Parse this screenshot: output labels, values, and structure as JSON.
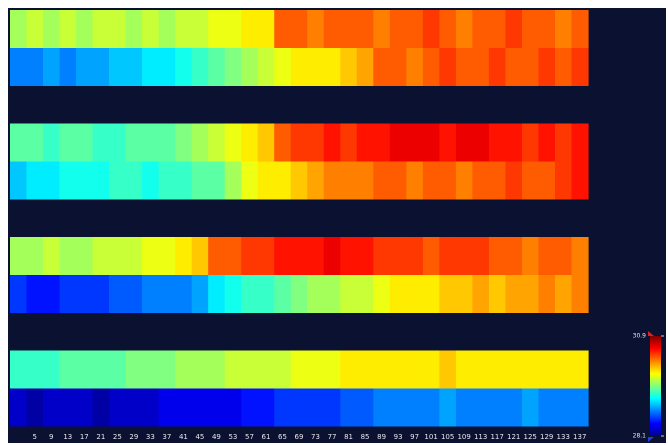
{
  "chart_data": {
    "type": "heatmap",
    "categories": [
      null,
      5,
      9,
      13,
      17,
      21,
      25,
      29,
      33,
      37,
      41,
      45,
      49,
      53,
      57,
      61,
      65,
      69,
      73,
      77,
      81,
      85,
      89,
      93,
      97,
      101,
      105,
      109,
      113,
      117,
      121,
      125,
      129,
      133,
      137
    ],
    "values": [
      [
        29.6,
        29.7,
        29.6,
        29.7,
        29.6,
        29.7,
        29.7,
        29.6,
        29.7,
        29.6,
        29.7,
        29.7,
        29.8,
        29.8,
        29.9,
        29.9,
        30.3,
        30.3,
        30.2,
        30.3,
        30.3,
        30.3,
        30.2,
        30.3,
        30.3,
        30.4,
        30.3,
        30.2,
        30.3,
        30.3,
        30.4,
        30.3,
        30.3,
        30.2,
        30.3
      ],
      [
        28.8,
        28.8,
        28.9,
        28.8,
        28.9,
        28.9,
        29.0,
        29.0,
        29.1,
        29.1,
        29.2,
        29.3,
        29.4,
        29.5,
        29.6,
        29.7,
        29.8,
        29.9,
        29.9,
        29.9,
        30.0,
        30.1,
        30.3,
        30.3,
        30.2,
        30.3,
        30.4,
        30.3,
        30.3,
        30.4,
        30.3,
        30.3,
        30.4,
        30.3,
        30.4
      ],
      [
        29.4,
        29.4,
        29.3,
        29.4,
        29.4,
        29.3,
        29.3,
        29.4,
        29.4,
        29.4,
        29.5,
        29.6,
        29.7,
        29.8,
        29.9,
        30.0,
        30.3,
        30.4,
        30.4,
        30.5,
        30.4,
        30.5,
        30.5,
        30.6,
        30.6,
        30.6,
        30.5,
        30.6,
        30.6,
        30.5,
        30.5,
        30.4,
        30.5,
        30.4,
        30.5
      ],
      [
        29.0,
        29.1,
        29.1,
        29.2,
        29.2,
        29.2,
        29.3,
        29.3,
        29.2,
        29.3,
        29.3,
        29.4,
        29.4,
        29.6,
        29.8,
        29.9,
        29.9,
        30.0,
        30.1,
        30.2,
        30.2,
        30.2,
        30.3,
        30.3,
        30.2,
        30.3,
        30.3,
        30.2,
        30.3,
        30.3,
        30.4,
        30.3,
        30.3,
        30.4,
        30.5
      ],
      [
        29.6,
        29.6,
        29.7,
        29.6,
        29.6,
        29.7,
        29.7,
        29.7,
        29.8,
        29.8,
        29.9,
        30.0,
        30.3,
        30.3,
        30.4,
        30.4,
        30.5,
        30.5,
        30.5,
        30.6,
        30.5,
        30.5,
        30.4,
        30.4,
        30.4,
        30.3,
        30.4,
        30.4,
        30.4,
        30.3,
        30.3,
        30.2,
        30.3,
        30.3,
        30.2
      ],
      [
        28.6,
        28.5,
        28.5,
        28.6,
        28.6,
        28.6,
        28.7,
        28.7,
        28.8,
        28.8,
        28.8,
        28.9,
        29.1,
        29.2,
        29.3,
        29.3,
        29.4,
        29.5,
        29.6,
        29.6,
        29.7,
        29.7,
        29.8,
        29.9,
        29.9,
        29.9,
        30.0,
        30.0,
        30.1,
        30.0,
        30.1,
        30.1,
        30.2,
        30.1,
        30.2
      ],
      [
        29.3,
        29.3,
        29.3,
        29.4,
        29.4,
        29.4,
        29.4,
        29.5,
        29.5,
        29.5,
        29.6,
        29.6,
        29.6,
        29.7,
        29.7,
        29.7,
        29.7,
        29.8,
        29.8,
        29.8,
        29.9,
        29.9,
        29.9,
        29.9,
        29.9,
        29.9,
        30.0,
        29.9,
        29.9,
        29.9,
        29.9,
        29.9,
        29.9,
        29.9,
        29.9
      ],
      [
        28.3,
        28.2,
        28.3,
        28.3,
        28.3,
        28.2,
        28.3,
        28.3,
        28.3,
        28.4,
        28.4,
        28.4,
        28.4,
        28.4,
        28.5,
        28.5,
        28.6,
        28.6,
        28.6,
        28.6,
        28.7,
        28.7,
        28.8,
        28.8,
        28.8,
        28.8,
        28.9,
        28.8,
        28.8,
        28.8,
        28.8,
        28.9,
        28.8,
        28.8,
        28.8
      ]
    ],
    "colormap": "jet",
    "zlim": [
      28.1,
      30.9
    ],
    "colorbar_ticks": [
      28.1,
      30.9
    ]
  }
}
